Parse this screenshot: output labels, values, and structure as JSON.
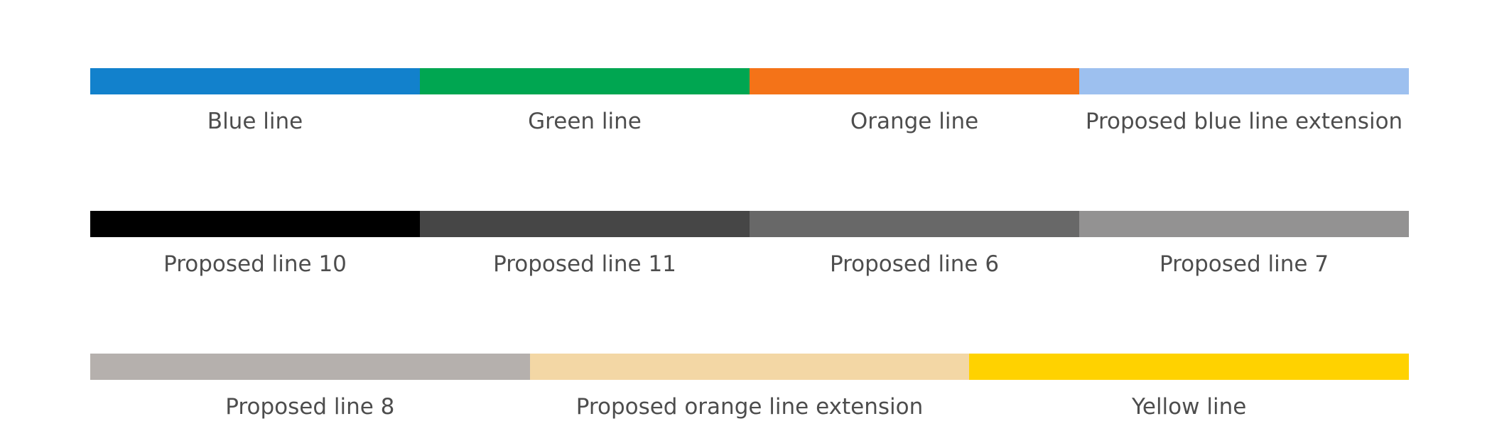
{
  "legend": {
    "rows": [
      {
        "items": [
          {
            "label": "Blue line",
            "color": "#1281cc"
          },
          {
            "label": "Green line",
            "color": "#00a651"
          },
          {
            "label": "Orange line",
            "color": "#f47318"
          },
          {
            "label": "Proposed blue line extension",
            "color": "#9dc0ef"
          }
        ]
      },
      {
        "items": [
          {
            "label": "Proposed line 10",
            "color": "#000000"
          },
          {
            "label": "Proposed line 11",
            "color": "#464646"
          },
          {
            "label": "Proposed line 6",
            "color": "#686868"
          },
          {
            "label": "Proposed line 7",
            "color": "#939292"
          }
        ]
      },
      {
        "items": [
          {
            "label": "Proposed line 8",
            "color": "#b5b0ad"
          },
          {
            "label": "Proposed orange line extension",
            "color": "#f3d7a5"
          },
          {
            "label": "Yellow line",
            "color": "#ffd200"
          }
        ]
      }
    ]
  }
}
